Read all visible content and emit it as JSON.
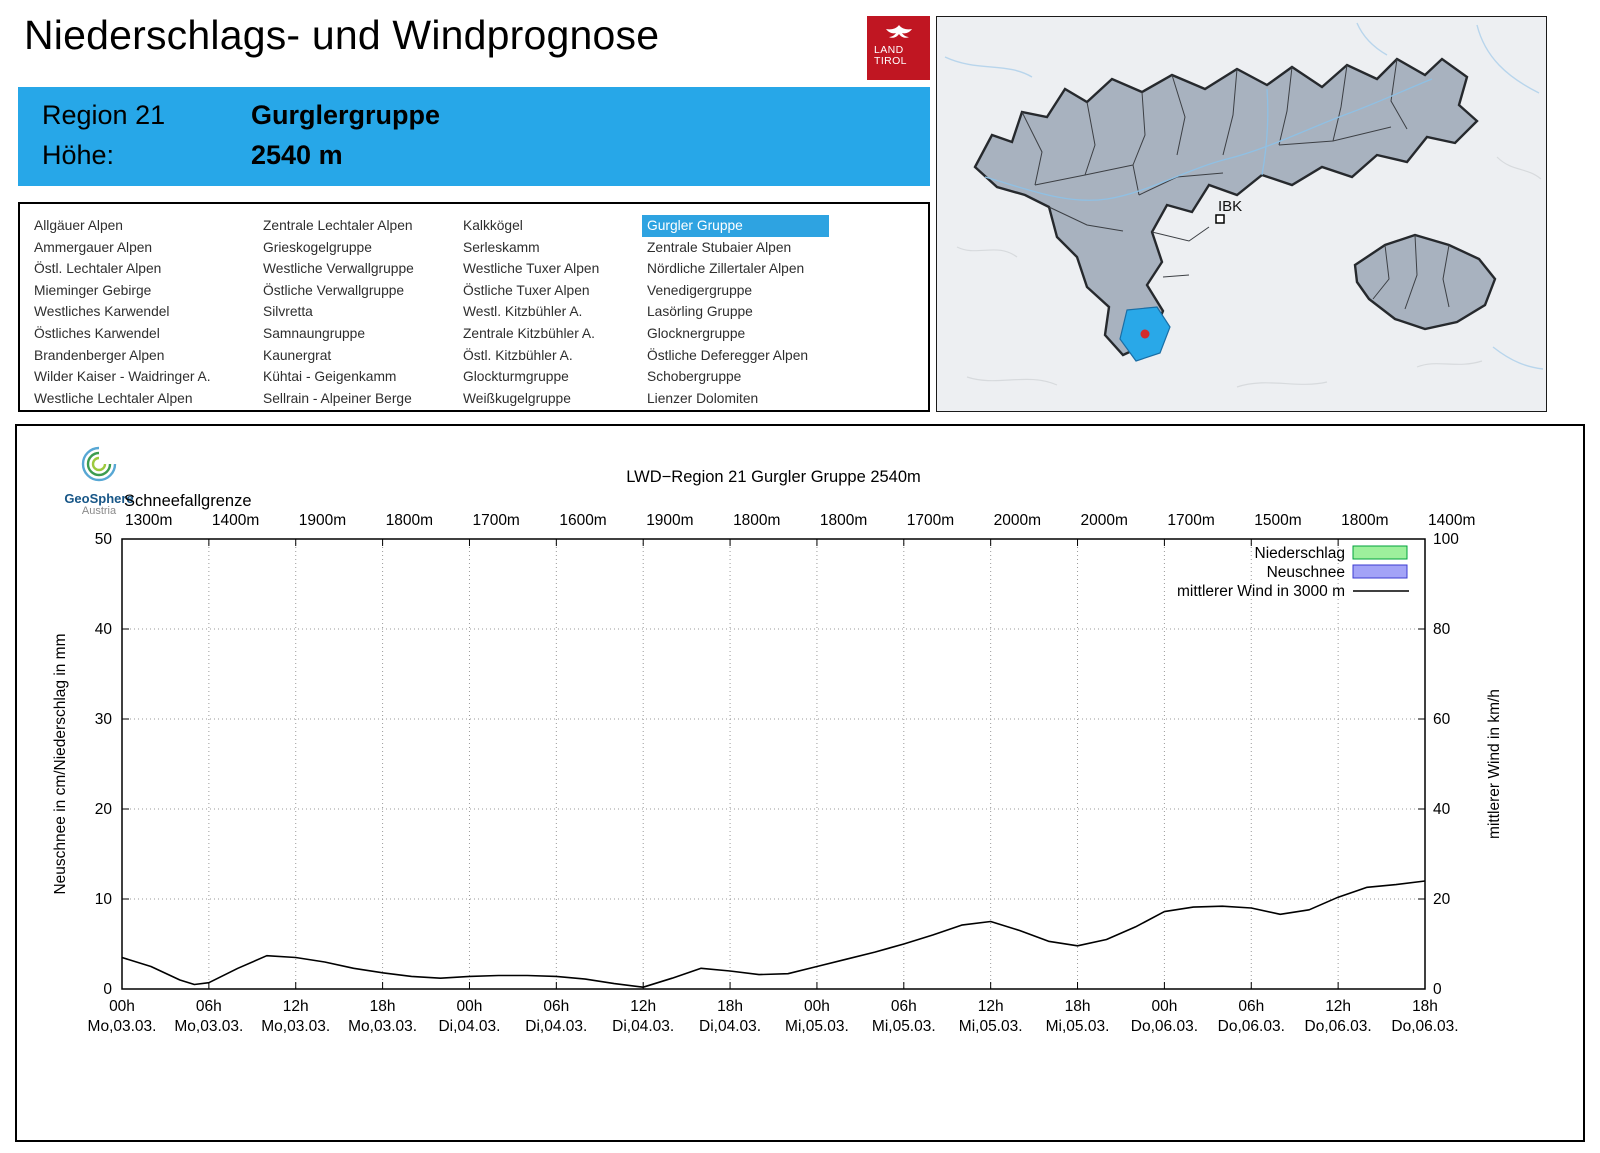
{
  "header": {
    "title": "Niederschlags- und Windprognose",
    "logo": {
      "line1": "LAND",
      "line2": "TIROL"
    },
    "region_label": "Region 21",
    "region_name": "Gurglergruppe",
    "altitude_label": "Höhe:",
    "altitude_value": "2540 m"
  },
  "map": {
    "city_label": "IBK"
  },
  "region_list": {
    "selected": "Gurgler Gruppe",
    "columns": [
      [
        "Allgäuer Alpen",
        "Ammergauer Alpen",
        "Östl. Lechtaler Alpen",
        "Mieminger Gebirge",
        "Westliches Karwendel",
        "Östliches Karwendel",
        "Brandenberger Alpen",
        "Wilder Kaiser - Waidringer A.",
        "Westliche Lechtaler Alpen"
      ],
      [
        "Zentrale Lechtaler Alpen",
        "Grieskogelgruppe",
        "Westliche Verwallgruppe",
        "Östliche Verwallgruppe",
        "Silvretta",
        "Samnaungruppe",
        "Kaunergrat",
        "Kühtai - Geigenkamm",
        "Sellrain - Alpeiner Berge"
      ],
      [
        "Kalkkögel",
        "Serleskamm",
        "Westliche Tuxer Alpen",
        "Östliche Tuxer Alpen",
        "Westl. Kitzbühler A.",
        "Zentrale Kitzbühler A.",
        "Östl. Kitzbühler A.",
        "Glockturmgruppe",
        "Weißkugelgruppe"
      ],
      [
        "Gurgler Gruppe",
        "Zentrale Stubaier Alpen",
        "Nördliche Zillertaler Alpen",
        "Venedigergruppe",
        "Lasörling Gruppe",
        "Glocknergruppe",
        "Östliche Deferegger Alpen",
        "Schobergruppe",
        "Lienzer Dolomiten"
      ]
    ]
  },
  "chart": {
    "brand": {
      "name": "GeoSphere",
      "sub": "Austria"
    }
  },
  "chart_data": {
    "type": "line",
    "title": "LWD−Region 21 Gurgler Gruppe 2540m",
    "snowline_label": "Schneefallgrenze",
    "snowline_labels": [
      "1300m",
      "1400m",
      "1900m",
      "1800m",
      "1700m",
      "1600m",
      "1900m",
      "1800m",
      "1800m",
      "1700m",
      "2000m",
      "2000m",
      "1700m",
      "1500m",
      "1800m",
      "1400m"
    ],
    "x_ticks": [
      {
        "hour": "00h",
        "day": "Mo,03.03."
      },
      {
        "hour": "06h",
        "day": "Mo,03.03."
      },
      {
        "hour": "12h",
        "day": "Mo,03.03."
      },
      {
        "hour": "18h",
        "day": "Mo,03.03."
      },
      {
        "hour": "00h",
        "day": "Di,04.03."
      },
      {
        "hour": "06h",
        "day": "Di,04.03."
      },
      {
        "hour": "12h",
        "day": "Di,04.03."
      },
      {
        "hour": "18h",
        "day": "Di,04.03."
      },
      {
        "hour": "00h",
        "day": "Mi,05.03."
      },
      {
        "hour": "06h",
        "day": "Mi,05.03."
      },
      {
        "hour": "12h",
        "day": "Mi,05.03."
      },
      {
        "hour": "18h",
        "day": "Mi,05.03."
      },
      {
        "hour": "00h",
        "day": "Do,06.03."
      },
      {
        "hour": "06h",
        "day": "Do,06.03."
      },
      {
        "hour": "12h",
        "day": "Do,06.03."
      },
      {
        "hour": "18h",
        "day": "Do,06.03."
      }
    ],
    "x_range_hours": [
      0,
      90
    ],
    "ylabel_left": "Neuschnee in cm/Niederschlag in mm",
    "ylabel_right": "mittlerer Wind in km/h",
    "ylim_left": [
      0,
      50
    ],
    "ylim_right": [
      0,
      100
    ],
    "yticks_left": [
      "0",
      "10",
      "20",
      "30",
      "40",
      "50"
    ],
    "yticks_right": [
      "0",
      "20",
      "40",
      "60",
      "80",
      "100"
    ],
    "grid": true,
    "legend_position": "top-right",
    "legend": [
      {
        "label": "Niederschlag",
        "type": "box",
        "fill": "#9df09c",
        "border": "#00a23b"
      },
      {
        "label": "Neuschnee",
        "type": "box",
        "fill": "#a3a3f7",
        "border": "#3b3bd0"
      },
      {
        "label": "mittlerer Wind in 3000 m",
        "type": "line",
        "color": "#000000"
      }
    ],
    "series": [
      {
        "name": "Niederschlag",
        "unit": "mm",
        "values": []
      },
      {
        "name": "Neuschnee",
        "unit": "cm",
        "values": []
      },
      {
        "name": "mittlerer Wind in 3000 m",
        "unit": "km/h",
        "axis": "right",
        "x_hours": [
          0,
          2,
          4,
          5,
          6,
          8,
          10,
          12,
          14,
          16,
          18,
          20,
          22,
          24,
          26,
          28,
          30,
          32,
          34,
          36,
          38,
          40,
          42,
          44,
          46,
          48,
          50,
          52,
          54,
          56,
          58,
          60,
          62,
          64,
          66,
          68,
          70,
          72,
          74,
          76,
          78,
          80,
          82,
          84,
          86,
          88,
          90
        ],
        "values": [
          7,
          5,
          2,
          1,
          1.4,
          4.6,
          7.4,
          7,
          6,
          4.6,
          3.6,
          2.8,
          2.4,
          2.8,
          3,
          3,
          2.8,
          2.2,
          1.2,
          0.4,
          2.4,
          4.6,
          4,
          3.2,
          3.4,
          5,
          6.6,
          8.2,
          10,
          12,
          14.2,
          15,
          13,
          10.6,
          9.6,
          11,
          13.8,
          17.2,
          18.2,
          18.4,
          18,
          16.6,
          17.6,
          20.4,
          22.6,
          23.2,
          24
        ]
      }
    ]
  }
}
